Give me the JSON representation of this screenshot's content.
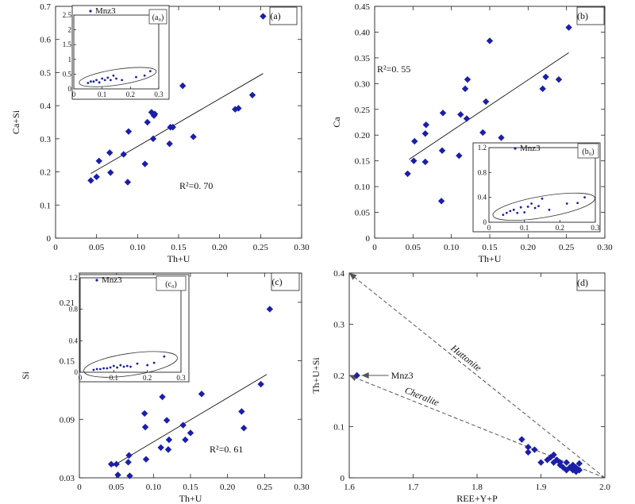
{
  "colors": {
    "marker": "#1b1fa8",
    "axis": "#222222"
  },
  "chart_data": [
    {
      "id": "a",
      "type": "scatter",
      "panel_label": "(a)",
      "xlabel": "Th+U",
      "ylabel": "Ca+Si",
      "xlim": [
        0,
        0.3
      ],
      "ylim": [
        0,
        0.7
      ],
      "xticks": [
        0,
        0.05,
        0.1,
        0.15,
        0.2,
        0.25,
        0.3
      ],
      "xtick_labels": [
        "0",
        "0.05",
        "0.10",
        "0.15",
        "0.20",
        "0.25",
        "0.30"
      ],
      "yticks": [
        0,
        0.1,
        0.2,
        0.3,
        0.4,
        0.5,
        0.6,
        0.7
      ],
      "ytick_labels": [
        "0",
        "0.1",
        "0.2",
        "0.3",
        "0.4",
        "0.5",
        "0.6",
        "0.7"
      ],
      "r2": "R²=0. 70",
      "fit": {
        "x": [
          0.043,
          0.253
        ],
        "y": [
          0.195,
          0.497
        ]
      },
      "points": {
        "x": [
          0.043,
          0.05,
          0.053,
          0.066,
          0.067,
          0.083,
          0.088,
          0.089,
          0.109,
          0.112,
          0.117,
          0.119,
          0.12,
          0.121,
          0.139,
          0.14,
          0.143,
          0.155,
          0.168,
          0.219,
          0.223,
          0.24,
          0.253
        ],
        "y": [
          0.174,
          0.185,
          0.233,
          0.258,
          0.198,
          0.253,
          0.169,
          0.322,
          0.224,
          0.35,
          0.38,
          0.3,
          0.37,
          0.375,
          0.285,
          0.335,
          0.335,
          0.46,
          0.306,
          0.389,
          0.392,
          0.432,
          0.67
        ]
      },
      "inset": {
        "label": "(a₀)",
        "legend": "Mnz3",
        "xlim": [
          0,
          0.3
        ],
        "ylim": [
          0,
          2.5
        ],
        "xticks": [
          0,
          0.1,
          0.2,
          0.3
        ],
        "xtick_labels": [
          "0",
          "0.1",
          "0.2",
          "0.3"
        ],
        "yticks": [
          0,
          0.5,
          1,
          1.5,
          2,
          2.5
        ],
        "ytick_labels": [
          "0",
          "0.5",
          "1",
          "1.5",
          "2",
          "2.5"
        ],
        "points": {
          "x": [
            0.05,
            0.06,
            0.07,
            0.08,
            0.09,
            0.1,
            0.11,
            0.12,
            0.13,
            0.14,
            0.15,
            0.17,
            0.22,
            0.25,
            0.27
          ],
          "y": [
            0.2,
            0.25,
            0.25,
            0.3,
            0.22,
            0.35,
            0.3,
            0.38,
            0.3,
            0.45,
            0.35,
            0.3,
            0.4,
            0.45,
            0.6
          ]
        },
        "ellipse": {
          "from": [
            0.03,
            0.22
          ],
          "to": [
            0.28,
            0.58
          ],
          "minor": 0.22
        }
      }
    },
    {
      "id": "b",
      "type": "scatter",
      "panel_label": "(b)",
      "xlabel": "Th+U",
      "ylabel": "Ca",
      "xlim": [
        0,
        0.3
      ],
      "ylim": [
        0,
        0.45
      ],
      "xticks": [
        0,
        0.05,
        0.1,
        0.15,
        0.2,
        0.25,
        0.3
      ],
      "xtick_labels": [
        "0",
        "0.05",
        "0.10",
        "0.15",
        "0.20",
        "0.25",
        "0.30"
      ],
      "yticks": [
        0,
        0.05,
        0.1,
        0.15,
        0.2,
        0.25,
        0.3,
        0.35,
        0.4,
        0.45
      ],
      "ytick_labels": [
        "0",
        "0.05",
        "0.10",
        "0.15",
        "0.20",
        "0.25",
        "0.30",
        "0.35",
        "0.40",
        "0.45"
      ],
      "r2": "R²=0. 55",
      "fit": {
        "x": [
          0.045,
          0.253
        ],
        "y": [
          0.153,
          0.36
        ]
      },
      "points": {
        "x": [
          0.043,
          0.051,
          0.052,
          0.066,
          0.066,
          0.067,
          0.087,
          0.088,
          0.089,
          0.11,
          0.112,
          0.118,
          0.12,
          0.121,
          0.141,
          0.145,
          0.15,
          0.165,
          0.219,
          0.223,
          0.24,
          0.253
        ],
        "y": [
          0.125,
          0.15,
          0.188,
          0.148,
          0.203,
          0.22,
          0.072,
          0.17,
          0.243,
          0.16,
          0.24,
          0.29,
          0.232,
          0.308,
          0.205,
          0.265,
          0.383,
          0.195,
          0.29,
          0.313,
          0.308,
          0.409
        ]
      },
      "inset": {
        "label": "(b₀)",
        "legend": "Mnz3",
        "xlim": [
          0,
          0.3
        ],
        "ylim": [
          0,
          1.2
        ],
        "xticks": [
          0,
          0.1,
          0.2,
          0.3
        ],
        "xtick_labels": [
          "0",
          "0.1",
          "0.2",
          "0.3"
        ],
        "yticks": [
          0,
          0.4,
          0.8,
          1.2
        ],
        "ytick_labels": [
          "0",
          "0.4",
          "0.8",
          "1.2"
        ],
        "points": {
          "x": [
            0.04,
            0.05,
            0.06,
            0.07,
            0.08,
            0.09,
            0.1,
            0.11,
            0.12,
            0.13,
            0.14,
            0.15,
            0.17,
            0.22,
            0.25,
            0.27
          ],
          "y": [
            0.12,
            0.15,
            0.18,
            0.2,
            0.15,
            0.24,
            0.16,
            0.25,
            0.3,
            0.23,
            0.26,
            0.38,
            0.2,
            0.3,
            0.31,
            0.4
          ]
        },
        "ellipse": {
          "from": [
            0.02,
            0.12
          ],
          "to": [
            0.29,
            0.38
          ],
          "minor": 0.17
        }
      }
    },
    {
      "id": "c",
      "type": "scatter",
      "panel_label": "(c)",
      "xlabel": "Th+U",
      "ylabel": "Si",
      "xlim": [
        0,
        0.3
      ],
      "ylim": [
        0.03,
        0.24
      ],
      "xticks": [
        0,
        0.05,
        0.1,
        0.15,
        0.2,
        0.25,
        0.3
      ],
      "xtick_labels": [
        "0",
        "0.05",
        "0.10",
        "0.15",
        "0.20",
        "0.25",
        "0.30"
      ],
      "yticks": [
        0.03,
        0.09,
        0.15,
        0.21
      ],
      "ytick_labels": [
        "0.03",
        "0.09",
        "0.15",
        "0.21"
      ],
      "r2": "R²=0. 61",
      "fit": {
        "x": [
          0.045,
          0.253
        ],
        "y": [
          0.042,
          0.136
        ]
      },
      "points": {
        "x": [
          0.043,
          0.05,
          0.052,
          0.066,
          0.067,
          0.068,
          0.088,
          0.089,
          0.09,
          0.11,
          0.112,
          0.118,
          0.12,
          0.121,
          0.14,
          0.143,
          0.15,
          0.165,
          0.219,
          0.222,
          0.245,
          0.257
        ],
        "y": [
          0.044,
          0.044,
          0.033,
          0.046,
          0.053,
          0.032,
          0.096,
          0.082,
          0.049,
          0.061,
          0.113,
          0.089,
          0.059,
          0.069,
          0.084,
          0.069,
          0.076,
          0.116,
          0.098,
          0.081,
          0.126,
          0.203
        ]
      },
      "inset": {
        "label": "(c₀)",
        "legend": "Mnz3",
        "xlim": [
          0,
          0.3
        ],
        "ylim": [
          0,
          1.2
        ],
        "xticks": [
          0,
          0.1,
          0.2,
          0.3
        ],
        "xtick_labels": [
          "0",
          "0.1",
          "0.2",
          "0.3"
        ],
        "yticks": [
          0,
          0.4,
          0.8,
          1.2
        ],
        "ytick_labels": [
          "0",
          "0.4",
          "0.8",
          "1.2"
        ],
        "points": {
          "x": [
            0.04,
            0.05,
            0.06,
            0.07,
            0.08,
            0.09,
            0.1,
            0.11,
            0.12,
            0.13,
            0.14,
            0.15,
            0.17,
            0.2,
            0.22,
            0.25
          ],
          "y": [
            0.03,
            0.04,
            0.04,
            0.05,
            0.05,
            0.06,
            0.08,
            0.06,
            0.09,
            0.07,
            0.08,
            0.07,
            0.11,
            0.09,
            0.12,
            0.2
          ]
        },
        "ellipse": {
          "from": [
            0.02,
            0.02
          ],
          "to": [
            0.28,
            0.18
          ],
          "minor": 0.14
        }
      }
    },
    {
      "id": "d",
      "type": "scatter",
      "panel_label": "(d)",
      "xlabel": "REE+Y+P",
      "ylabel": "Th+U+Si",
      "xlim": [
        1.6,
        2.0
      ],
      "ylim": [
        0,
        0.4
      ],
      "xticks": [
        1.6,
        1.7,
        1.8,
        1.9,
        2.0
      ],
      "xtick_labels": [
        "1.6",
        "1.7",
        "1.8",
        "1.9",
        "2.0"
      ],
      "yticks": [
        0,
        0.1,
        0.2,
        0.3,
        0.4
      ],
      "ytick_labels": [
        "0",
        "0.1",
        "0.2",
        "0.3",
        "0.4"
      ],
      "endmember_lines": [
        {
          "label": "Huttonite",
          "from": [
            2.0,
            0.0
          ],
          "to": [
            1.6,
            0.4
          ]
        },
        {
          "label": "Cheralite",
          "from": [
            2.0,
            0.0
          ],
          "to": [
            1.6,
            0.2
          ]
        }
      ],
      "annotation": {
        "label": "Mnz3",
        "point": [
          1.612,
          0.2
        ]
      },
      "points": {
        "x": [
          1.612,
          1.87,
          1.88,
          1.88,
          1.89,
          1.9,
          1.91,
          1.915,
          1.92,
          1.92,
          1.925,
          1.93,
          1.93,
          1.935,
          1.94,
          1.94,
          1.945,
          1.95,
          1.95,
          1.955,
          1.955,
          1.96,
          1.96
        ],
        "y": [
          0.2,
          0.075,
          0.06,
          0.05,
          0.055,
          0.03,
          0.035,
          0.04,
          0.045,
          0.03,
          0.035,
          0.025,
          0.03,
          0.02,
          0.03,
          0.015,
          0.02,
          0.025,
          0.015,
          0.02,
          0.012,
          0.028,
          0.015
        ]
      }
    }
  ]
}
